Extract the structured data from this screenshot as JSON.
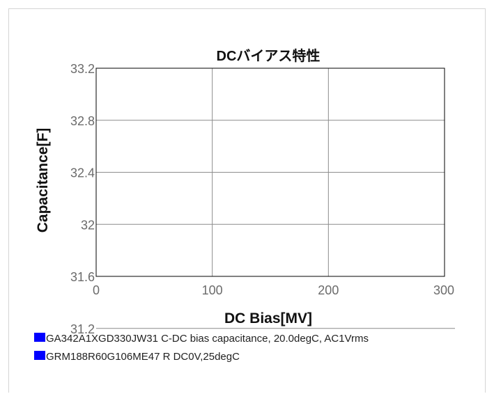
{
  "chart_data": {
    "type": "line",
    "title": "DCバイアス特性",
    "xlabel": "DC Bias[MV]",
    "ylabel": "Capacitance[F]",
    "xlim": [
      0,
      300
    ],
    "ylim": [
      31.6,
      33.2
    ],
    "x_ticks": [
      "0",
      "100",
      "200",
      "300"
    ],
    "y_ticks": [
      "33.2",
      "32.8",
      "32.4",
      "32",
      "31.6",
      "31.2"
    ],
    "grid": true,
    "legend_position": "bottom",
    "series": [
      {
        "name": "GA342A1XGD330JW31 C-DC bias capacitance, 20.0degC, AC1Vrms",
        "color": "#0000ff",
        "points": []
      },
      {
        "name": "GRM188R60G106ME47 R DC0V,25degC",
        "color": "#0000ff",
        "points": []
      }
    ]
  }
}
